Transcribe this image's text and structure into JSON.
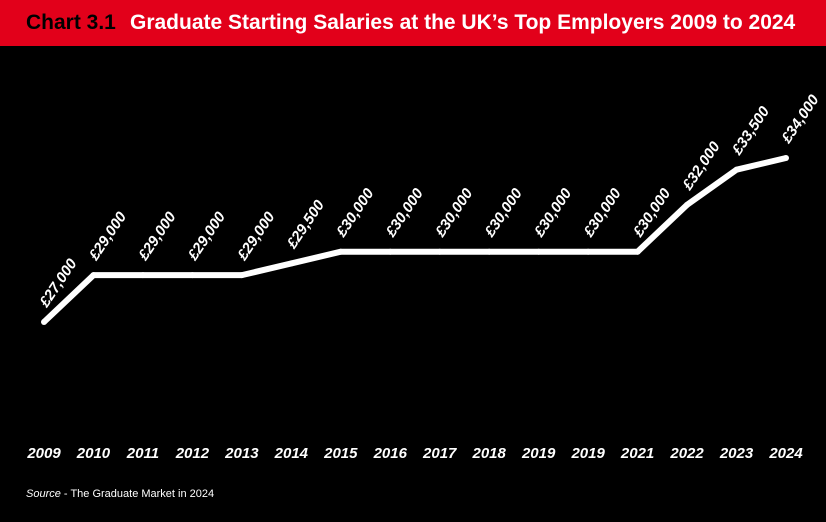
{
  "header": {
    "chart_number": "Chart 3.1",
    "title": "Graduate Starting Salaries at the UK’s Top Employers 2009 to 2024"
  },
  "source": {
    "label": "Source",
    "separator": " - ",
    "text": "The Graduate Market in 2024"
  },
  "colors": {
    "header_bg": "#e2001a",
    "background": "#000000",
    "line": "#ffffff",
    "text": "#ffffff"
  },
  "chart_data": {
    "type": "line",
    "title": "Graduate Starting Salaries at the UK’s Top Employers 2009 to 2024",
    "categories": [
      "2009",
      "2010",
      "2011",
      "2012",
      "2013",
      "2014",
      "2015",
      "2016",
      "2017",
      "2018",
      "2019",
      "2019",
      "2021",
      "2022",
      "2023",
      "2024"
    ],
    "values": [
      27000,
      29000,
      29000,
      29000,
      29000,
      29500,
      30000,
      30000,
      30000,
      30000,
      30000,
      30000,
      30000,
      32000,
      33500,
      34000
    ],
    "data_labels": [
      "",
      "£29,000",
      "£29,000",
      "£29,000",
      "£29,000",
      "£29,500",
      "£30,000",
      "£30,000",
      "£30,000",
      "£30,000",
      "£30,000",
      "£30,000",
      "£30,000",
      "£32,000",
      "£33,500",
      "£34,000"
    ],
    "first_label": "£27,000",
    "label_prefix": "£",
    "xlabel": "",
    "ylabel": "",
    "grid": false,
    "legend": "none"
  }
}
